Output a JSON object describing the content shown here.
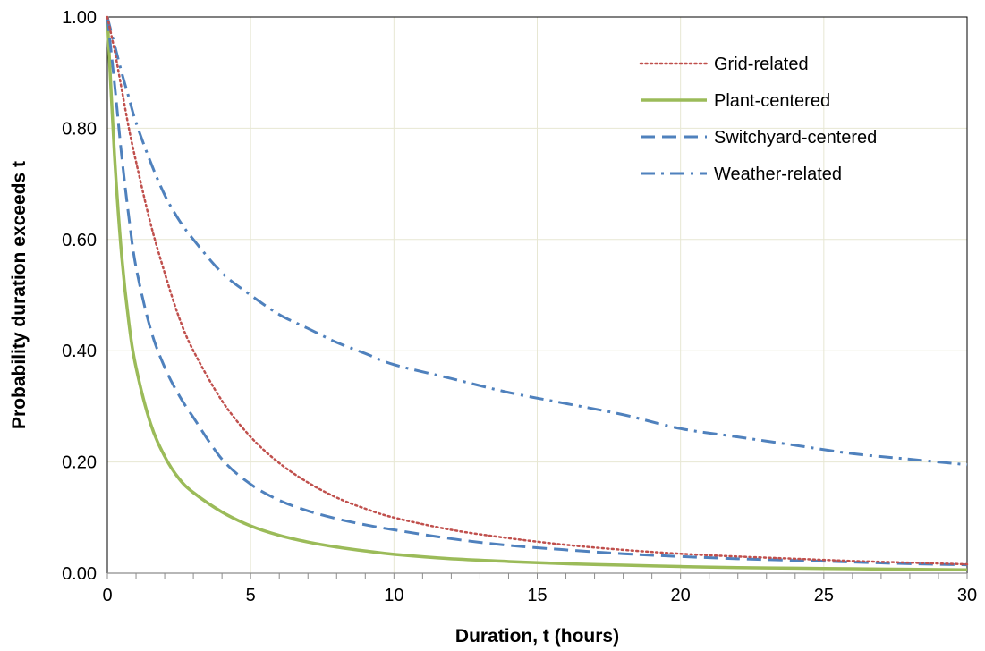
{
  "chart_data": {
    "type": "line",
    "title": "",
    "xlabel": "Duration, t (hours)",
    "ylabel": "Probability duration exceeds t",
    "xlim": [
      0,
      30
    ],
    "ylim": [
      0,
      1
    ],
    "x_ticks": [
      "0",
      "5",
      "10",
      "15",
      "20",
      "25",
      "30"
    ],
    "y_ticks": [
      "0.00",
      "0.20",
      "0.40",
      "0.60",
      "0.80",
      "1.00"
    ],
    "grid": true,
    "legend_position": "top-right",
    "x": [
      0,
      0.25,
      0.5,
      0.75,
      1,
      1.5,
      2,
      2.5,
      3,
      4,
      5,
      6,
      7,
      8,
      9,
      10,
      12,
      14,
      16,
      18,
      20,
      22,
      24,
      26,
      28,
      30
    ],
    "series": [
      {
        "name": "Grid-related",
        "color": "#c0504d",
        "dash": "dotted",
        "values": [
          1.0,
          0.94,
          0.87,
          0.8,
          0.74,
          0.63,
          0.54,
          0.46,
          0.4,
          0.31,
          0.245,
          0.198,
          0.163,
          0.136,
          0.116,
          0.1,
          0.078,
          0.063,
          0.051,
          0.042,
          0.035,
          0.03,
          0.026,
          0.022,
          0.019,
          0.016
        ]
      },
      {
        "name": "Plant-centered",
        "color": "#9bbb59",
        "dash": "solid",
        "values": [
          1.0,
          0.75,
          0.57,
          0.45,
          0.37,
          0.27,
          0.21,
          0.17,
          0.145,
          0.11,
          0.085,
          0.068,
          0.056,
          0.047,
          0.04,
          0.034,
          0.026,
          0.021,
          0.017,
          0.0145,
          0.012,
          0.01,
          0.009,
          0.008,
          0.007,
          0.006
        ]
      },
      {
        "name": "Switchyard-centered",
        "color": "#4f81bd",
        "dash": "dashed",
        "values": [
          1.0,
          0.88,
          0.75,
          0.64,
          0.55,
          0.44,
          0.37,
          0.32,
          0.28,
          0.205,
          0.16,
          0.131,
          0.112,
          0.098,
          0.087,
          0.078,
          0.062,
          0.05,
          0.042,
          0.035,
          0.03,
          0.026,
          0.023,
          0.02,
          0.017,
          0.015
        ]
      },
      {
        "name": "Weather-related",
        "color": "#4f81bd",
        "dash": "dashdot",
        "values": [
          1.0,
          0.95,
          0.9,
          0.855,
          0.81,
          0.74,
          0.68,
          0.635,
          0.6,
          0.54,
          0.5,
          0.465,
          0.44,
          0.415,
          0.395,
          0.375,
          0.35,
          0.325,
          0.305,
          0.285,
          0.26,
          0.245,
          0.23,
          0.215,
          0.205,
          0.195
        ]
      }
    ]
  }
}
